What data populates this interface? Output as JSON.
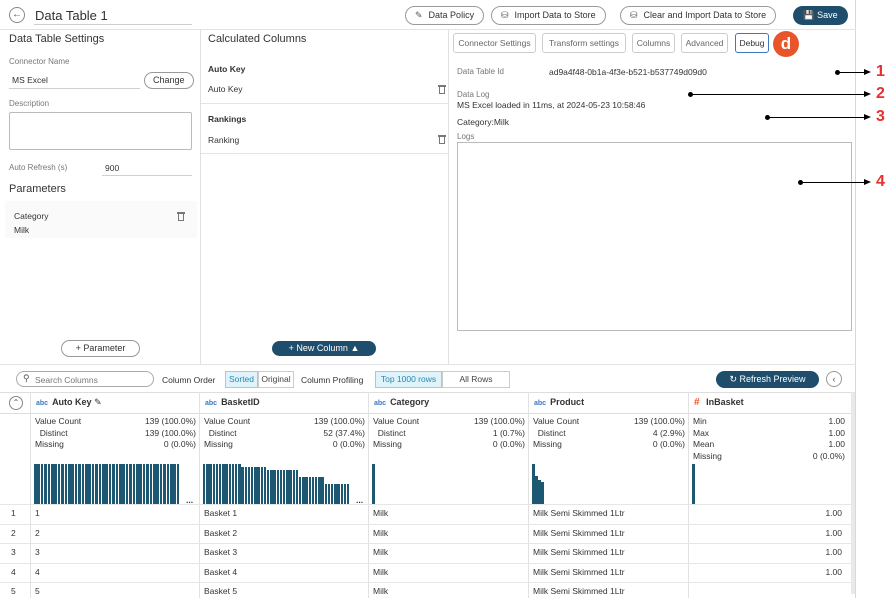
{
  "header": {
    "title": "Data Table 1",
    "data_policy": "Data Policy",
    "import": "Import Data to Store",
    "clear_import": "Clear and Import Data to Store",
    "save": "Save"
  },
  "settings": {
    "title": "Data Table Settings",
    "connector_label": "Connector Name",
    "connector_value": "MS Excel",
    "change": "Change",
    "description_label": "Description",
    "auto_refresh_label": "Auto Refresh (s)",
    "auto_refresh_value": "900",
    "parameters_title": "Parameters",
    "param_name": "Category",
    "param_value": "Milk",
    "add_parameter": "Parameter"
  },
  "calculated": {
    "title": "Calculated Columns",
    "sections": [
      {
        "header": "Auto Key",
        "item": "Auto Key"
      },
      {
        "header": "Rankings",
        "item": "Ranking"
      }
    ],
    "new_column": "New Column"
  },
  "debug": {
    "tabs": [
      "Connector Settings",
      "Transform settings",
      "Columns",
      "Advanced",
      "Debug"
    ],
    "badge": "d",
    "table_id_label": "Data Table Id",
    "table_id_value": "ad9a4f48-0b1a-4f3e-b521-b537749d09d0",
    "log_label": "Data Log",
    "log_value": "MS Excel loaded in 11ms, at 2024-05-23 10:58:46",
    "category_text": "Category:Milk",
    "logs_label": "Logs"
  },
  "callouts": [
    "1",
    "2",
    "3",
    "4"
  ],
  "toolbar": {
    "search_placeholder": "Search Columns",
    "column_order": "Column Order",
    "sorted": "Sorted",
    "original": "Original",
    "column_profiling": "Column Profiling",
    "top_rows": "Top 1000 rows",
    "all_rows": "All Rows",
    "refresh": "Refresh Preview"
  },
  "grid": {
    "columns": [
      {
        "type": "abc",
        "name": "Auto Key",
        "stats": [
          [
            "Value Count",
            "139 (100.0%)"
          ],
          [
            "  Distinct",
            "139 (100.0%)"
          ],
          [
            "Missing",
            "0 (0.0%)"
          ]
        ]
      },
      {
        "type": "abc",
        "name": "BasketID",
        "stats": [
          [
            "Value Count",
            "139 (100.0%)"
          ],
          [
            "  Distinct",
            "52 (37.4%)"
          ],
          [
            "Missing",
            "0 (0.0%)"
          ]
        ]
      },
      {
        "type": "abc",
        "name": "Category",
        "stats": [
          [
            "Value Count",
            "139 (100.0%)"
          ],
          [
            "  Distinct",
            "1 (0.7%)"
          ],
          [
            "Missing",
            "0 (0.0%)"
          ]
        ]
      },
      {
        "type": "abc",
        "name": "Product",
        "stats": [
          [
            "Value Count",
            "139 (100.0%)"
          ],
          [
            "  Distinct",
            "4 (2.9%)"
          ],
          [
            "Missing",
            "0 (0.0%)"
          ]
        ]
      },
      {
        "type": "#",
        "name": "InBasket",
        "stats": [
          [
            "Min",
            "1.00"
          ],
          [
            "Max",
            "1.00"
          ],
          [
            "Mean",
            "1.00"
          ],
          [
            "Missing",
            "0 (0.0%)"
          ]
        ]
      }
    ],
    "ellipsis": "...",
    "rows": [
      [
        "1",
        "1",
        "Basket 1",
        "Milk",
        "Milk Semi Skimmed 1Ltr",
        "1.00"
      ],
      [
        "2",
        "2",
        "Basket 2",
        "Milk",
        "Milk Semi Skimmed 1Ltr",
        "1.00"
      ],
      [
        "3",
        "3",
        "Basket 3",
        "Milk",
        "Milk Semi Skimmed 1Ltr",
        "1.00"
      ],
      [
        "4",
        "4",
        "Basket 4",
        "Milk",
        "Milk Semi Skimmed 1Ltr",
        "1.00"
      ],
      [
        "5",
        "5",
        "Basket 5",
        "Milk",
        "Milk Semi Skimmed 1Ltr",
        ""
      ]
    ]
  }
}
